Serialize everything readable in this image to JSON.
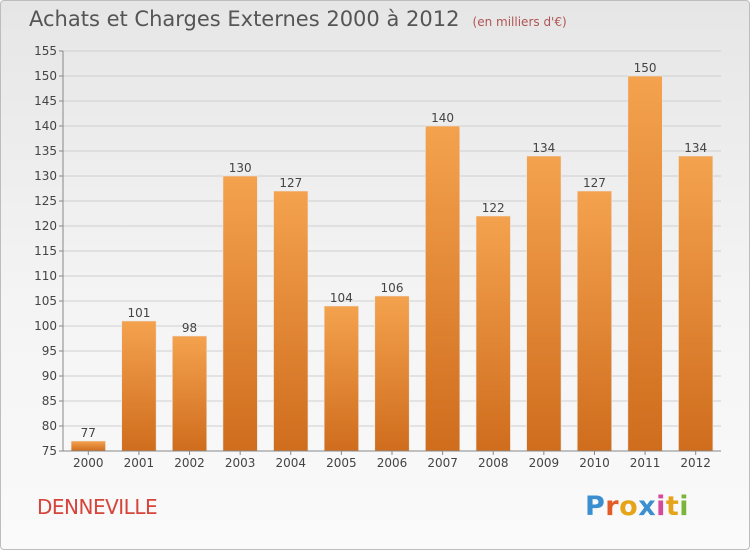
{
  "header": {
    "title": "Achats et Charges Externes 2000 à 2012",
    "unit": "(en milliers d'€)"
  },
  "footer": {
    "commune": "DENNEVILLE",
    "logo_letters": [
      {
        "ch": "P",
        "color": "#3b8fd0"
      },
      {
        "ch": "r",
        "color": "#e25c2a"
      },
      {
        "ch": "o",
        "color": "#e5a41a"
      },
      {
        "ch": "x",
        "color": "#3b8fd0"
      },
      {
        "ch": "i",
        "color": "#d54a9a"
      },
      {
        "ch": "t",
        "color": "#e5a41a"
      },
      {
        "ch": "i",
        "color": "#7ab53a"
      }
    ]
  },
  "colors": {
    "bar_light": "#f4a24e",
    "bar_dark": "#cf6d1d",
    "grid": "#cfcfcf",
    "axis": "#888888",
    "tick_text": "#444444"
  },
  "chart_data": {
    "type": "bar",
    "title": "Achats et Charges Externes 2000 à 2012",
    "categories": [
      "2000",
      "2001",
      "2002",
      "2003",
      "2004",
      "2005",
      "2006",
      "2007",
      "2008",
      "2009",
      "2010",
      "2011",
      "2012"
    ],
    "values": [
      77,
      101,
      98,
      130,
      127,
      104,
      106,
      140,
      122,
      134,
      127,
      150,
      134
    ],
    "data_labels": [
      "77",
      "101",
      "98",
      "130",
      "127",
      "104",
      "106",
      "140",
      "122",
      "134",
      "127",
      "150",
      "134"
    ],
    "ylim": [
      75,
      155
    ],
    "yticks": [
      75,
      80,
      85,
      90,
      95,
      100,
      105,
      110,
      115,
      120,
      125,
      130,
      135,
      140,
      145,
      150,
      155
    ],
    "grid": true,
    "legend": "none"
  }
}
